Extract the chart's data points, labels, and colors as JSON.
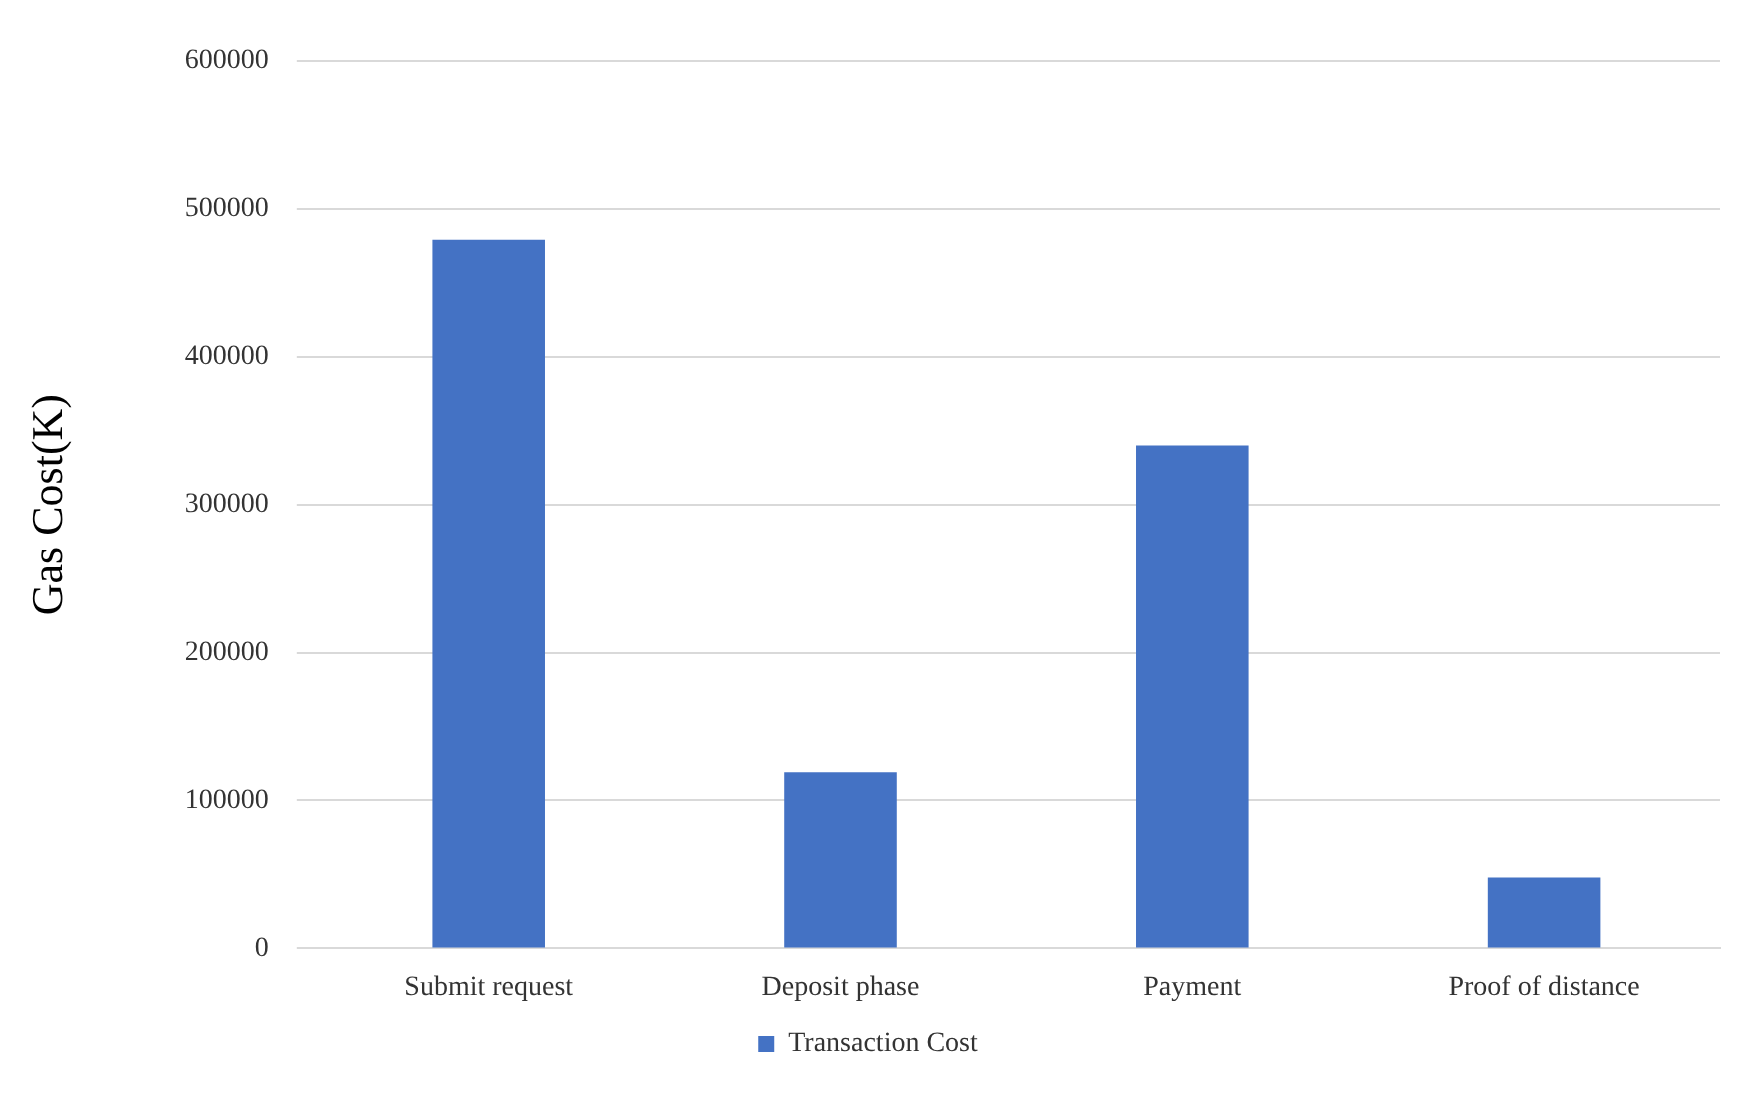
{
  "chart_data": {
    "type": "bar",
    "ylabel": "Gas Cost(K)",
    "categories": [
      "Submit request",
      "Deposit phase",
      "Payment",
      "Proof of distance"
    ],
    "series": [
      {
        "name": "Transaction Cost",
        "color": "#4472c4",
        "values": [
          479000,
          119000,
          340000,
          48000
        ]
      }
    ],
    "ylim": [
      0,
      600000
    ],
    "yticks": [
      0,
      100000,
      200000,
      300000,
      400000,
      500000,
      600000
    ],
    "grid": "y",
    "legend": "bottom"
  }
}
